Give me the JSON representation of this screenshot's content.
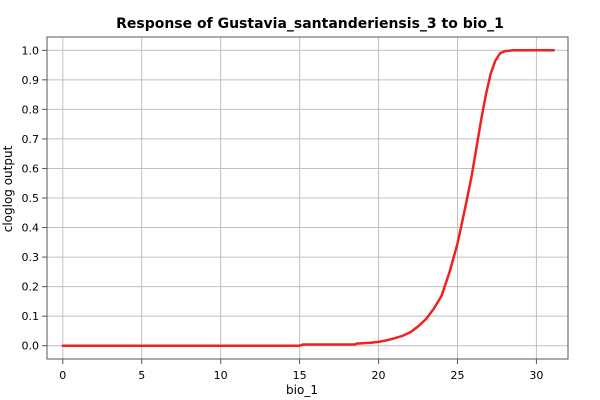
{
  "chart_data": {
    "type": "line",
    "title": "Response of Gustavia_santanderiensis_3 to bio_1",
    "xlabel": "bio_1",
    "ylabel": "cloglog output",
    "xlim": [
      -1,
      32
    ],
    "ylim": [
      -0.045,
      1.045
    ],
    "xticks": [
      0,
      5,
      10,
      15,
      20,
      25,
      30
    ],
    "yticks": [
      0.0,
      0.1,
      0.2,
      0.3,
      0.4,
      0.5,
      0.6,
      0.7,
      0.8,
      0.9,
      1.0
    ],
    "ytick_labels": [
      "0.0",
      "0.1",
      "0.2",
      "0.3",
      "0.4",
      "0.5",
      "0.6",
      "0.7",
      "0.8",
      "0.9",
      "1.0"
    ],
    "grid": true,
    "series": [
      {
        "color": "#ee2222",
        "x": [
          0,
          5,
          10,
          15,
          15.2,
          17,
          18.5,
          18.6,
          19.5,
          20,
          20.5,
          21,
          21.5,
          22,
          22.5,
          23,
          23.5,
          24,
          24.5,
          25,
          25.5,
          25.9,
          26.2,
          26.5,
          26.8,
          27.1,
          27.4,
          27.7,
          28.0,
          28.5,
          29,
          30,
          31.1
        ],
        "y": [
          0,
          0,
          0,
          0,
          0.004,
          0.004,
          0.004,
          0.007,
          0.01,
          0.013,
          0.018,
          0.025,
          0.033,
          0.045,
          0.065,
          0.09,
          0.125,
          0.17,
          0.25,
          0.345,
          0.47,
          0.575,
          0.67,
          0.765,
          0.85,
          0.92,
          0.965,
          0.99,
          0.997,
          1.0,
          1.0,
          1.0,
          1.0
        ]
      }
    ]
  }
}
